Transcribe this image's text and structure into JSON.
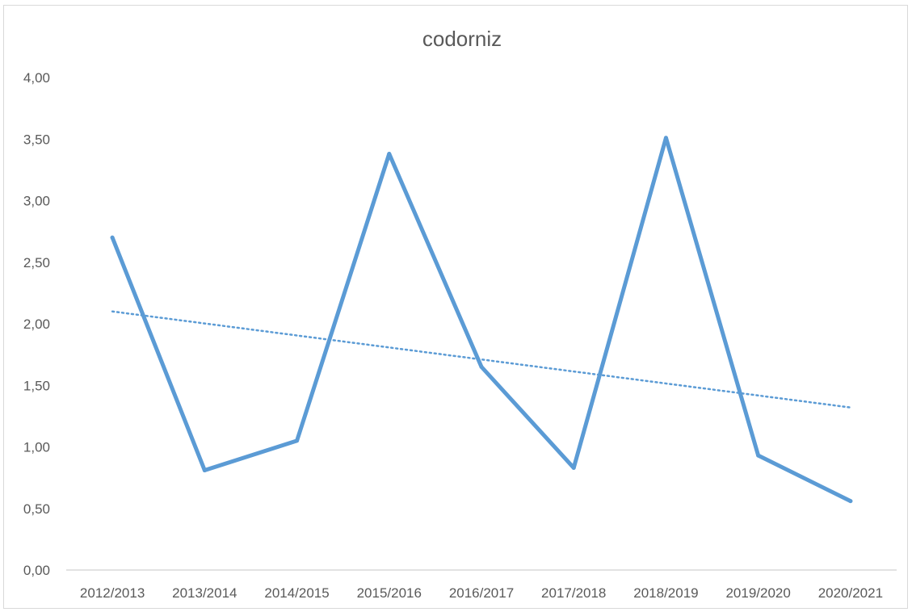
{
  "chart_data": {
    "type": "line",
    "title": "codorniz",
    "xlabel": "",
    "ylabel": "",
    "categories": [
      "2012/2013",
      "2013/2014",
      "2014/2015",
      "2015/2016",
      "2016/2017",
      "2017/2018",
      "2018/2019",
      "2019/2020",
      "2020/2021"
    ],
    "series": [
      {
        "values": [
          2.7,
          0.81,
          1.05,
          3.38,
          1.65,
          0.83,
          3.51,
          0.93,
          0.56
        ],
        "color": "#5b9bd5"
      }
    ],
    "trendline": {
      "type": "linear",
      "style": "dotted",
      "start": 2.1,
      "end": 1.32,
      "color": "#5b9bd5"
    },
    "y_ticks": [
      "0,00",
      "0,50",
      "1,00",
      "1,50",
      "2,00",
      "2,50",
      "3,00",
      "3,50",
      "4,00"
    ],
    "ylim": [
      0,
      4
    ],
    "grid": false,
    "legend": "none"
  }
}
